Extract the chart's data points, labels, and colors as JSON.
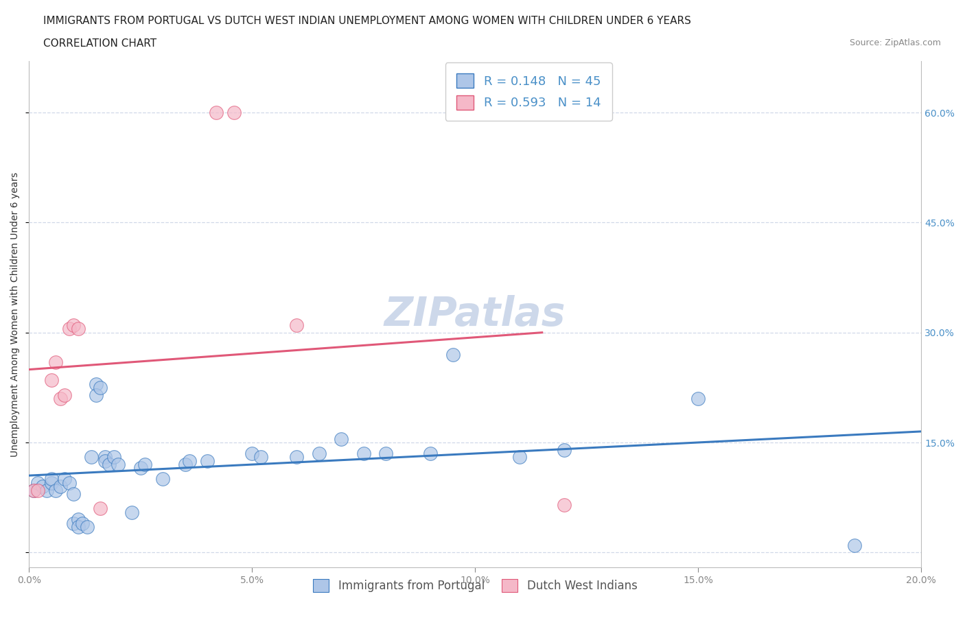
{
  "title_line1": "IMMIGRANTS FROM PORTUGAL VS DUTCH WEST INDIAN UNEMPLOYMENT AMONG WOMEN WITH CHILDREN UNDER 6 YEARS",
  "title_line2": "CORRELATION CHART",
  "source_text": "Source: ZipAtlas.com",
  "ylabel": "Unemployment Among Women with Children Under 6 years",
  "xlim": [
    0.0,
    0.2
  ],
  "ylim": [
    -0.02,
    0.67
  ],
  "xticks": [
    0.0,
    0.05,
    0.1,
    0.15,
    0.2
  ],
  "yticks": [
    0.0,
    0.15,
    0.3,
    0.45,
    0.6
  ],
  "xtick_labels": [
    "0.0%",
    "5.0%",
    "10.0%",
    "15.0%",
    "20.0%"
  ],
  "ytick_labels_right": [
    "",
    "15.0%",
    "30.0%",
    "45.0%",
    "60.0%"
  ],
  "watermark": "ZIPatlas",
  "legend_r1": "R = 0.148",
  "legend_n1": "N = 45",
  "legend_r2": "R = 0.593",
  "legend_n2": "N = 14",
  "blue_color": "#aec6e8",
  "pink_color": "#f5b8c8",
  "blue_line_color": "#3a7abf",
  "pink_line_color": "#e05878",
  "scatter_blue": [
    [
      0.001,
      0.085
    ],
    [
      0.002,
      0.095
    ],
    [
      0.003,
      0.09
    ],
    [
      0.004,
      0.085
    ],
    [
      0.005,
      0.095
    ],
    [
      0.005,
      0.1
    ],
    [
      0.006,
      0.085
    ],
    [
      0.007,
      0.09
    ],
    [
      0.008,
      0.1
    ],
    [
      0.009,
      0.095
    ],
    [
      0.01,
      0.08
    ],
    [
      0.01,
      0.04
    ],
    [
      0.011,
      0.045
    ],
    [
      0.011,
      0.035
    ],
    [
      0.012,
      0.04
    ],
    [
      0.013,
      0.035
    ],
    [
      0.014,
      0.13
    ],
    [
      0.015,
      0.23
    ],
    [
      0.015,
      0.215
    ],
    [
      0.016,
      0.225
    ],
    [
      0.017,
      0.13
    ],
    [
      0.017,
      0.125
    ],
    [
      0.018,
      0.12
    ],
    [
      0.019,
      0.13
    ],
    [
      0.02,
      0.12
    ],
    [
      0.023,
      0.055
    ],
    [
      0.025,
      0.115
    ],
    [
      0.026,
      0.12
    ],
    [
      0.03,
      0.1
    ],
    [
      0.035,
      0.12
    ],
    [
      0.036,
      0.125
    ],
    [
      0.04,
      0.125
    ],
    [
      0.05,
      0.135
    ],
    [
      0.052,
      0.13
    ],
    [
      0.06,
      0.13
    ],
    [
      0.065,
      0.135
    ],
    [
      0.07,
      0.155
    ],
    [
      0.075,
      0.135
    ],
    [
      0.08,
      0.135
    ],
    [
      0.09,
      0.135
    ],
    [
      0.095,
      0.27
    ],
    [
      0.11,
      0.13
    ],
    [
      0.12,
      0.14
    ],
    [
      0.15,
      0.21
    ],
    [
      0.185,
      0.01
    ]
  ],
  "scatter_pink": [
    [
      0.001,
      0.085
    ],
    [
      0.002,
      0.085
    ],
    [
      0.005,
      0.235
    ],
    [
      0.006,
      0.26
    ],
    [
      0.007,
      0.21
    ],
    [
      0.008,
      0.215
    ],
    [
      0.009,
      0.305
    ],
    [
      0.01,
      0.31
    ],
    [
      0.011,
      0.305
    ],
    [
      0.016,
      0.06
    ],
    [
      0.042,
      0.6
    ],
    [
      0.046,
      0.6
    ],
    [
      0.06,
      0.31
    ],
    [
      0.12,
      0.065
    ]
  ],
  "title_fontsize": 11,
  "subtitle_fontsize": 11,
  "axis_label_fontsize": 10,
  "tick_fontsize": 10,
  "legend_fontsize": 13,
  "source_fontsize": 9,
  "watermark_fontsize": 42,
  "watermark_color": "#cdd8ea",
  "bg_color": "#ffffff",
  "grid_color": "#d0d8e8",
  "tick_color": "#4a90c8"
}
